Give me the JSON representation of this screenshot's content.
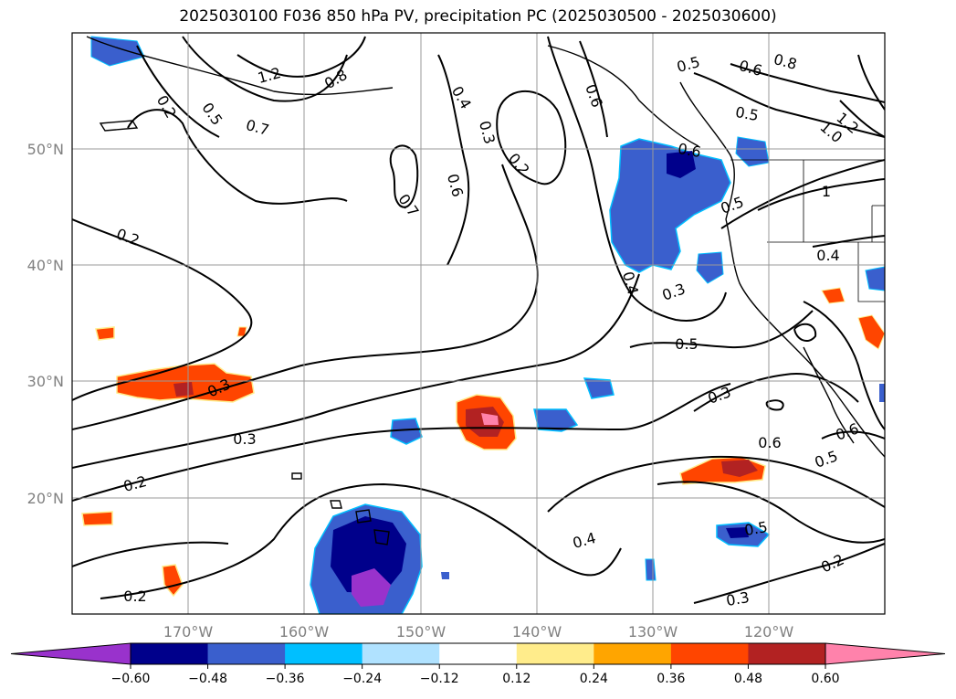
{
  "title": "2025030100 F036 850 hPa PV, precipitation PC (2025030500 - 2025030600)",
  "map": {
    "projection": "plate-carree",
    "lon_range": [
      -180,
      -110
    ],
    "lat_range": [
      10,
      60
    ],
    "gridlines": true,
    "lon_ticks": [
      "170°W",
      "160°W",
      "150°W",
      "140°W",
      "130°W",
      "120°W"
    ],
    "lat_ticks": [
      "20°N",
      "30°N",
      "40°N",
      "50°N"
    ]
  },
  "contour_labels": [
    "0.2",
    "0.5",
    "0.7",
    "0.8",
    "1.2",
    "0.4",
    "0.3",
    "0.2",
    "0.6",
    "0.7",
    "0.2",
    "0.6",
    "0.5",
    "0.6",
    "0.8",
    "0.5",
    "1.0",
    "1.2",
    "0.6",
    "1",
    "0.5",
    "0.4",
    "0.3",
    "0.4",
    "0.5",
    "0.3",
    "0.6",
    "0.6",
    "0.5",
    "0.3",
    "0.3",
    "0.2",
    "0.4",
    "0.5",
    "0.2",
    "0.3",
    "0.2"
  ],
  "colorbar": {
    "colors": [
      "#9932CC",
      "#00008B",
      "#3A5FCD",
      "#00BFFF",
      "#B0E2FF",
      "#FFFFFF",
      "#FFEC8B",
      "#FFA500",
      "#FF4500",
      "#B22222",
      "#FF82AB"
    ],
    "labels": [
      "−0.60",
      "−0.48",
      "−0.36",
      "−0.24",
      "−0.12",
      "0.12",
      "0.24",
      "0.36",
      "0.48",
      "0.60"
    ],
    "extend": "both"
  }
}
